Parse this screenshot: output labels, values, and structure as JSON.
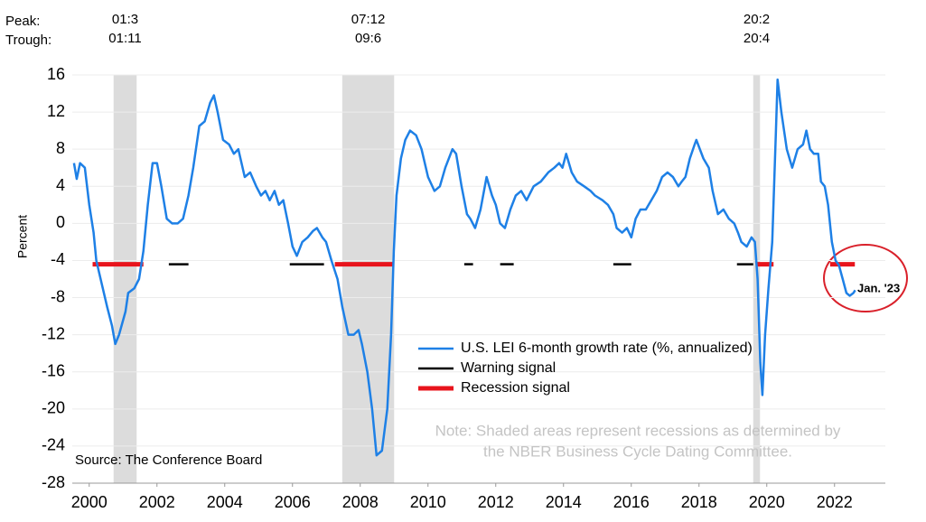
{
  "chart_data": {
    "type": "line",
    "y_label": "Percent",
    "source": "Source: The Conference Board",
    "note": [
      "Note: Shaded areas represent recessions as determined by",
      "the NBER Business Cycle Dating Committee."
    ],
    "annotation": "Jan. '23",
    "peak_label": "Peak:",
    "trough_label": "Trough:",
    "recessions": [
      {
        "peak": "01:3",
        "trough": "01:11",
        "start": 2001.22,
        "end": 2001.9
      },
      {
        "peak": "07:12",
        "trough": "09:6",
        "start": 2007.97,
        "end": 2009.5
      },
      {
        "peak": "20:2",
        "trough": "20:4",
        "start": 2020.1,
        "end": 2020.3
      }
    ],
    "xlim": [
      2000,
      2024
    ],
    "xticks": [
      {
        "value": 2000.5,
        "label": "2000"
      },
      {
        "value": 2002.5,
        "label": "2002"
      },
      {
        "value": 2004.5,
        "label": "2004"
      },
      {
        "value": 2006.5,
        "label": "2006"
      },
      {
        "value": 2008.5,
        "label": "2008"
      },
      {
        "value": 2010.5,
        "label": "2010"
      },
      {
        "value": 2012.5,
        "label": "2012"
      },
      {
        "value": 2014.5,
        "label": "2014"
      },
      {
        "value": 2016.5,
        "label": "2016"
      },
      {
        "value": 2018.5,
        "label": "2018"
      },
      {
        "value": 2020.5,
        "label": "2020"
      },
      {
        "value": 2022.5,
        "label": "2022"
      }
    ],
    "ylim": [
      -28,
      16
    ],
    "yticks": [
      16,
      12,
      8,
      4,
      0,
      -4,
      -8,
      -12,
      -16,
      -20,
      -24,
      -28
    ],
    "grid": true,
    "series": [
      {
        "name": "U.S. LEI 6-month growth rate (%, annualized)",
        "color": "#1e80e6",
        "x": [
          2000.05,
          2000.13,
          2000.23,
          2000.37,
          2000.5,
          2000.63,
          2000.71,
          2000.9,
          2001.03,
          2001.17,
          2001.27,
          2001.38,
          2001.57,
          2001.65,
          2001.83,
          2001.97,
          2002.1,
          2002.23,
          2002.37,
          2002.5,
          2002.63,
          2002.79,
          2002.95,
          2003.11,
          2003.27,
          2003.43,
          2003.57,
          2003.75,
          2003.91,
          2004.07,
          2004.18,
          2004.29,
          2004.45,
          2004.63,
          2004.77,
          2004.9,
          2005.09,
          2005.25,
          2005.43,
          2005.57,
          2005.7,
          2005.83,
          2005.97,
          2006.1,
          2006.23,
          2006.37,
          2006.5,
          2006.63,
          2006.79,
          2006.95,
          2007.11,
          2007.22,
          2007.38,
          2007.49,
          2007.65,
          2007.83,
          2007.97,
          2008.15,
          2008.31,
          2008.45,
          2008.55,
          2008.71,
          2008.85,
          2008.98,
          2009.14,
          2009.3,
          2009.41,
          2009.49,
          2009.57,
          2009.7,
          2009.83,
          2009.97,
          2010.15,
          2010.31,
          2010.5,
          2010.69,
          2010.85,
          2011.01,
          2011.22,
          2011.33,
          2011.49,
          2011.65,
          2011.75,
          2011.89,
          2012.05,
          2012.23,
          2012.39,
          2012.5,
          2012.63,
          2012.77,
          2012.93,
          2013.09,
          2013.25,
          2013.41,
          2013.62,
          2013.83,
          2014.05,
          2014.23,
          2014.37,
          2014.47,
          2014.58,
          2014.74,
          2014.9,
          2015.11,
          2015.3,
          2015.43,
          2015.65,
          2015.81,
          2015.97,
          2016.07,
          2016.23,
          2016.37,
          2016.5,
          2016.63,
          2016.77,
          2016.93,
          2017.09,
          2017.25,
          2017.41,
          2017.57,
          2017.73,
          2017.89,
          2017.99,
          2018.1,
          2018.23,
          2018.37,
          2018.42,
          2018.63,
          2018.79,
          2018.9,
          2019.06,
          2019.22,
          2019.38,
          2019.54,
          2019.65,
          2019.75,
          2019.91,
          2020.05,
          2020.15,
          2020.23,
          2020.31,
          2020.37,
          2020.45,
          2020.55,
          2020.66,
          2020.77,
          2020.82,
          2020.93,
          2021.09,
          2021.25,
          2021.41,
          2021.57,
          2021.67,
          2021.78,
          2021.89,
          2022.02,
          2022.1,
          2022.21,
          2022.31,
          2022.42,
          2022.53,
          2022.63,
          2022.74,
          2022.85,
          2022.95,
          2023.06,
          2023.11
        ],
        "values": [
          6.5,
          4.8,
          6.5,
          6,
          2,
          -1,
          -4,
          -7,
          -9,
          -11,
          -13,
          -12,
          -9.5,
          -7.5,
          -7,
          -6,
          -3,
          2,
          6.5,
          6.5,
          4,
          0.5,
          0,
          0,
          0.5,
          3,
          6,
          10.5,
          11,
          13,
          13.8,
          12,
          9,
          8.5,
          7.5,
          8,
          5,
          5.5,
          4,
          3,
          3.5,
          2.5,
          3.5,
          2,
          2.5,
          0,
          -2.5,
          -3.5,
          -2,
          -1.5,
          -0.8,
          -0.5,
          -1.5,
          -2,
          -4,
          -6,
          -9,
          -12,
          -12,
          -11.5,
          -13,
          -16,
          -20,
          -25,
          -24.5,
          -20,
          -12,
          -3,
          3,
          7,
          9,
          10,
          9.5,
          8,
          5,
          3.5,
          4,
          6,
          8,
          7.5,
          4,
          1,
          0.5,
          -0.5,
          1.5,
          5,
          3,
          2,
          0,
          -0.5,
          1.5,
          3,
          3.5,
          2.5,
          4,
          4.5,
          5.5,
          6,
          6.5,
          6,
          7.5,
          5.5,
          4.5,
          4,
          3.5,
          3,
          2.5,
          2,
          1,
          -0.5,
          -1,
          -0.5,
          -1.5,
          0.5,
          1.5,
          1.5,
          2.5,
          3.5,
          5,
          5.5,
          5,
          4,
          4.5,
          5,
          7,
          8.5,
          9,
          7,
          6,
          3.5,
          1,
          1.5,
          0.5,
          0,
          -1,
          -2,
          -2.5,
          -1.5,
          -2,
          -6,
          -15,
          -18.5,
          -12,
          -7,
          -2,
          10,
          15.5,
          12,
          8,
          6,
          8,
          8.5,
          10,
          8,
          7.5,
          7.5,
          4.5,
          4,
          2,
          -2,
          -4,
          -4.5,
          -6,
          -7.5,
          -7.8,
          -7.5,
          -7.2
        ]
      }
    ],
    "signals": [
      {
        "name": "Warning signal",
        "color": "#000000",
        "level": -4.4,
        "spans": [
          [
            2002.85,
            2003.43
          ],
          [
            2006.42,
            2007.43
          ],
          [
            2011.57,
            2011.83
          ],
          [
            2012.63,
            2013.03
          ],
          [
            2015.97,
            2016.5
          ],
          [
            2019.62,
            2020.1
          ]
        ]
      },
      {
        "name": "Recession signal",
        "color": "#e8141c",
        "level": -4.4,
        "spans": [
          [
            2000.6,
            2002.1
          ],
          [
            2007.75,
            2009.5
          ],
          [
            2020.18,
            2020.7
          ],
          [
            2022.37,
            2023.1
          ]
        ]
      }
    ]
  }
}
